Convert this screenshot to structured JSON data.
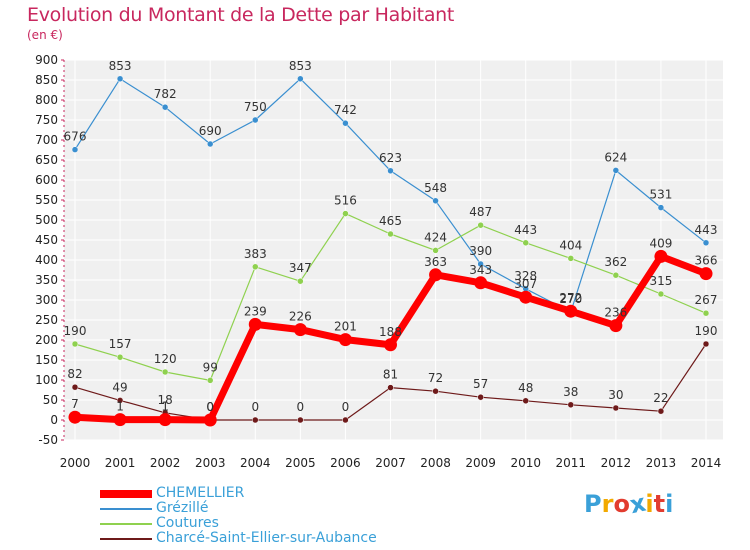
{
  "header": {
    "title": "Evolution du Montant de la Dette par Habitant",
    "subtitle": "(en €)"
  },
  "logo": {
    "letters": [
      "P",
      "r",
      "o",
      "x",
      "i",
      "t",
      "i"
    ],
    "colors": [
      "#3aa0d8",
      "#f2a900",
      "#e23c2f",
      "#3aa0d8",
      "#f2a900",
      "#e23c2f",
      "#3aa0d8"
    ]
  },
  "chart_data": {
    "type": "line",
    "title": "Evolution du Montant de la Dette par Habitant",
    "subtitle": "(en €)",
    "x": [
      2000,
      2001,
      2002,
      2003,
      2004,
      2005,
      2006,
      2007,
      2008,
      2009,
      2010,
      2011,
      2012,
      2013,
      2014
    ],
    "ylim": [
      -50,
      900
    ],
    "yticks": [
      -50,
      0,
      50,
      100,
      150,
      200,
      250,
      300,
      350,
      400,
      450,
      500,
      550,
      600,
      650,
      700,
      750,
      800,
      850,
      900
    ],
    "grid": true,
    "legend_position": "bottom-left",
    "series": [
      {
        "name": "CHEMELLIER",
        "color": "#ff0000",
        "values": [
          7,
          1,
          1,
          0,
          239,
          226,
          201,
          188,
          363,
          343,
          307,
          272,
          236,
          409,
          366
        ]
      },
      {
        "name": "Grézillé",
        "color": "#3a8fd0",
        "values": [
          676,
          853,
          782,
          690,
          750,
          853,
          742,
          623,
          548,
          390,
          328,
          270,
          624,
          531,
          443
        ]
      },
      {
        "name": "Coutures",
        "color": "#8fd14f",
        "values": [
          190,
          157,
          120,
          99,
          383,
          347,
          516,
          465,
          424,
          487,
          443,
          404,
          362,
          315,
          267
        ]
      },
      {
        "name": "Charcé-Saint-Ellier-sur-Aubance",
        "color": "#6e1a1a",
        "values": [
          82,
          49,
          18,
          0,
          0,
          0,
          0,
          81,
          72,
          57,
          48,
          38,
          30,
          22,
          190
        ]
      }
    ],
    "data_labels": [
      {
        "series": "CHEMELLIER",
        "values": [
          "7",
          "1",
          "1",
          "0",
          "239",
          "226",
          "201",
          "188",
          "363",
          "343",
          "307",
          "272",
          "236",
          "409",
          "366"
        ]
      },
      {
        "series": "Grézillé",
        "values": [
          "676",
          "853",
          "782",
          "690",
          "750",
          "853",
          "742",
          "623",
          "548",
          "390",
          "328",
          "270",
          "624",
          "531",
          "443"
        ]
      },
      {
        "series": "Coutures",
        "values": [
          "190",
          "157",
          "120",
          "99",
          "383",
          "347",
          "516",
          "465",
          "424",
          "487",
          "443",
          "404",
          "362",
          "315",
          "267"
        ]
      },
      {
        "series": "Charcé-Saint-Ellier-sur-Aubance",
        "values": [
          "82",
          "49",
          "18",
          "0",
          "0",
          "0",
          "0",
          "81",
          "72",
          "57",
          "48",
          "38",
          "30",
          "22",
          "190"
        ]
      }
    ]
  }
}
